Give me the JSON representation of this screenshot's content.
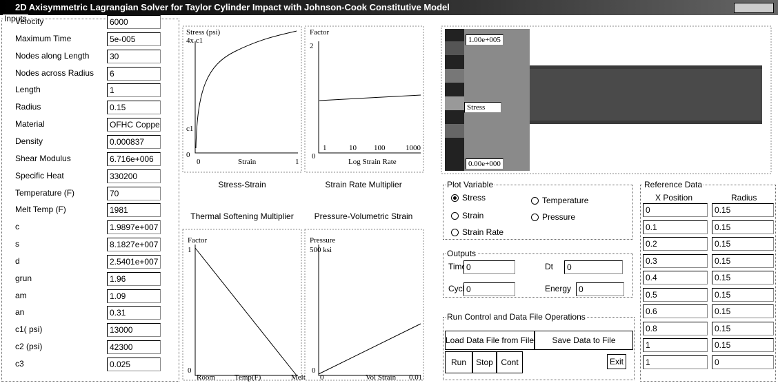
{
  "title_bar": {
    "title": "2D Axisymmetric Lagrangian Solver for Taylor Cylinder Impact with Johnson-Cook Constitutive Model"
  },
  "inputs": {
    "title": "Inputs",
    "fields": [
      {
        "label": "Velocity",
        "value": "6000"
      },
      {
        "label": "Maximum Time",
        "value": "5e-005"
      },
      {
        "label": "Nodes along Length",
        "value": "30"
      },
      {
        "label": "Nodes across Radius",
        "value": "6"
      },
      {
        "label": "Length",
        "value": "1"
      },
      {
        "label": "Radius",
        "value": "0.15"
      },
      {
        "label": "Material",
        "value": "OFHC Copper"
      },
      {
        "label": "Density",
        "value": "0.000837"
      },
      {
        "label": "Shear Modulus",
        "value": "6.716e+006"
      },
      {
        "label": "Specific Heat",
        "value": "330200"
      },
      {
        "label": "Temperature (F)",
        "value": "70"
      },
      {
        "label": "Melt Temp (F)",
        "value": "1981"
      },
      {
        "label": "c",
        "value": "1.9897e+007"
      },
      {
        "label": "s",
        "value": "8.1827e+007"
      },
      {
        "label": "d",
        "value": "2.5401e+007"
      },
      {
        "label": "grun",
        "value": "1.96"
      },
      {
        "label": "am",
        "value": "1.09"
      },
      {
        "label": "an",
        "value": "0.31"
      },
      {
        "label": "c1( psi)",
        "value": "13000"
      },
      {
        "label": "c2 (psi)",
        "value": "42300"
      },
      {
        "label": "c3",
        "value": "0.025"
      }
    ]
  },
  "plots": [
    {
      "caption": "Stress-Strain",
      "labels": [
        "Stress (psi)",
        "4x c1",
        "c1",
        "0",
        "0",
        "Strain",
        "1"
      ]
    },
    {
      "caption": "Strain Rate Multiplier",
      "labels": [
        "Factor",
        "2",
        "0",
        "1",
        "10",
        "100",
        "1000",
        "Log Strain Rate"
      ]
    },
    {
      "caption": "Thermal Softening Multiplier",
      "labels": [
        "Factor",
        "1",
        "0",
        "Room",
        "Temp(F)",
        "Melt"
      ]
    },
    {
      "caption": "Pressure-Volumetric Strain",
      "labels": [
        "Pressure",
        "500 ksi",
        "0",
        "0",
        "Vol Strain",
        "0.01"
      ]
    }
  ],
  "color_plot": {
    "max": "1.00e+005",
    "variable": "Stress",
    "min": "0.00e+000"
  },
  "plot_variable": {
    "title": "Plot Variable",
    "options": [
      "Stress",
      "Temperature",
      "Strain",
      "Pressure",
      "Strain Rate"
    ],
    "selected": "Stress"
  },
  "outputs": {
    "title": "Outputs",
    "fields": [
      {
        "label": "Time",
        "value": "0"
      },
      {
        "label": "Dt",
        "value": "0"
      },
      {
        "label": "Cycle",
        "value": "0"
      },
      {
        "label": "Energy",
        "value": "0"
      }
    ]
  },
  "run_control": {
    "title": "Run Control and Data File Operations",
    "buttons": [
      "Load Data File from File",
      "Save Data to File",
      "Run",
      "Stop",
      "Cont",
      "Exit"
    ]
  },
  "reference_data": {
    "title": "Reference Data",
    "columns": [
      "X Position",
      "Radius"
    ],
    "rows": [
      [
        "0",
        "0.15"
      ],
      [
        "0.1",
        "0.15"
      ],
      [
        "0.2",
        "0.15"
      ],
      [
        "0.3",
        "0.15"
      ],
      [
        "0.4",
        "0.15"
      ],
      [
        "0.5",
        "0.15"
      ],
      [
        "0.6",
        "0.15"
      ],
      [
        "0.8",
        "0.15"
      ],
      [
        "1",
        "0.15"
      ],
      [
        "1",
        "0"
      ]
    ]
  }
}
